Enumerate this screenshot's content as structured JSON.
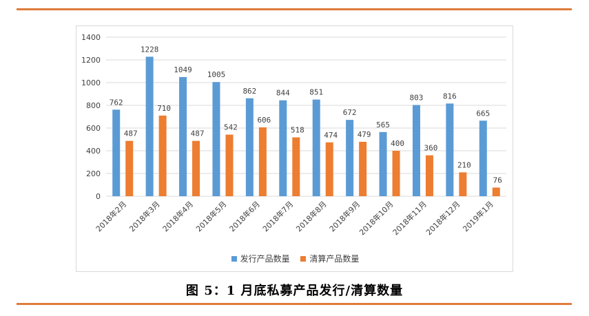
{
  "caption": "图 5：1 月底私募产品发行/清算数量",
  "colors": {
    "series1": "#5b9bd5",
    "series2": "#ed7d31",
    "rule": "#e07b3a",
    "grid": "#d9d9d9",
    "text": "#404040"
  },
  "chart_data": {
    "type": "bar",
    "title": "",
    "xlabel": "",
    "ylabel": "",
    "ylim": [
      0,
      1400
    ],
    "yticks": [
      0,
      200,
      400,
      600,
      800,
      1000,
      1200,
      1400
    ],
    "grid": true,
    "legend_position": "bottom",
    "categories": [
      "2018年2月",
      "2018年3月",
      "2018年4月",
      "2018年5月",
      "2018年6月",
      "2018年7月",
      "2018年8月",
      "2018年9月",
      "2018年10月",
      "2018年11月",
      "2018年12月",
      "2019年1月"
    ],
    "series": [
      {
        "name": "发行产品数量",
        "values": [
          762,
          1228,
          1049,
          1005,
          862,
          844,
          851,
          672,
          565,
          803,
          816,
          665
        ]
      },
      {
        "name": "清算产品数量",
        "values": [
          487,
          710,
          487,
          542,
          606,
          518,
          474,
          479,
          400,
          360,
          210,
          76
        ]
      }
    ]
  }
}
